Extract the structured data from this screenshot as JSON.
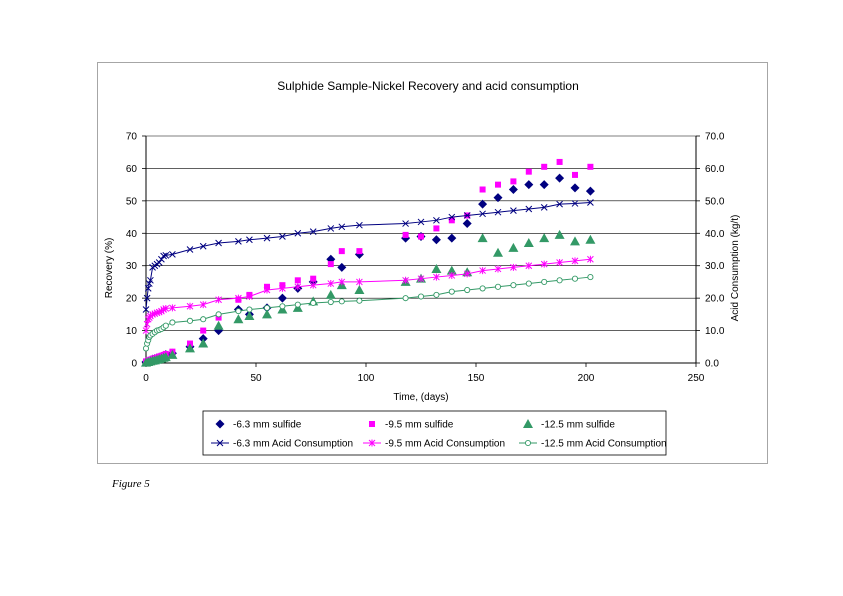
{
  "caption": "Figure 5",
  "chart_data": {
    "type": "scatter",
    "title": "Sulphide Sample-Nickel  Recovery and acid consumption",
    "xlabel": "Time, (days)",
    "ylabel": "Recovery (%)",
    "y2label": "Acid Consumption (kg/t)",
    "xlim": [
      0,
      250
    ],
    "ylim": [
      0,
      70
    ],
    "y2lim": [
      0,
      70
    ],
    "x_ticks": [
      "0",
      "50",
      "100",
      "150",
      "200",
      "250"
    ],
    "y_ticks": [
      "0",
      "10",
      "20",
      "30",
      "40",
      "50",
      "60",
      "70"
    ],
    "y2_ticks": [
      "0.0",
      "10.0",
      "20.0",
      "30.0",
      "40.0",
      "50.0",
      "60.0",
      "70.0"
    ],
    "grid": "horizontal",
    "legend_position": "bottom",
    "colors": {
      "navy": "#000080",
      "magenta": "#ff00ff",
      "green": "#339966",
      "grid": "#000000"
    },
    "series": [
      {
        "name": "-6.3 mm sulfide",
        "axis": "left",
        "marker": "diamond",
        "color": "#000080",
        "line": false,
        "x": [
          0,
          1,
          2,
          3,
          4,
          5,
          6,
          7,
          8,
          9,
          12,
          20,
          26,
          33,
          42,
          47,
          55,
          62,
          69,
          76,
          84,
          89,
          97,
          118,
          125,
          132,
          139,
          146,
          153,
          160,
          167,
          174,
          181,
          188,
          195,
          202
        ],
        "y": [
          0.3,
          0.6,
          0.9,
          1.2,
          1.4,
          1.6,
          1.8,
          2.0,
          2.3,
          2.6,
          3.0,
          5.0,
          7.5,
          10.0,
          16.5,
          15.0,
          17.0,
          20.0,
          23.0,
          25.0,
          32.0,
          29.5,
          33.5,
          38.5,
          39.0,
          38.0,
          38.5,
          43.0,
          49.0,
          51.0,
          53.5,
          55.0,
          55.0,
          57.0,
          54.0,
          53.0
        ]
      },
      {
        "name": "-9.5 mm sulfide",
        "axis": "left",
        "marker": "square",
        "color": "#ff00ff",
        "line": false,
        "x": [
          0,
          1,
          2,
          3,
          4,
          5,
          6,
          7,
          8,
          9,
          12,
          20,
          26,
          33,
          42,
          47,
          55,
          62,
          69,
          76,
          84,
          89,
          97,
          118,
          125,
          132,
          139,
          146,
          153,
          160,
          167,
          174,
          181,
          188,
          195,
          202
        ],
        "y": [
          0.5,
          0.8,
          1.0,
          1.3,
          1.5,
          1.7,
          2.0,
          2.2,
          2.5,
          2.8,
          3.5,
          6.0,
          10.0,
          14.0,
          19.5,
          21.0,
          23.5,
          24.0,
          25.5,
          26.0,
          30.5,
          34.5,
          34.5,
          39.5,
          39.0,
          41.5,
          44.0,
          45.5,
          53.5,
          55.0,
          56.0,
          59.0,
          60.5,
          62.0,
          58.0,
          60.5
        ]
      },
      {
        "name": "-12.5 mm sulfide",
        "axis": "left",
        "marker": "triangle",
        "color": "#339966",
        "line": false,
        "x": [
          0,
          1,
          2,
          3,
          4,
          5,
          6,
          7,
          8,
          9,
          12,
          20,
          26,
          33,
          42,
          47,
          55,
          62,
          69,
          76,
          84,
          89,
          97,
          118,
          125,
          132,
          139,
          146,
          153,
          160,
          167,
          174,
          181,
          188,
          195,
          202
        ],
        "y": [
          0.1,
          0.3,
          0.5,
          0.7,
          0.8,
          1.0,
          1.2,
          1.4,
          1.6,
          1.8,
          2.5,
          4.5,
          6.0,
          11.5,
          13.5,
          14.5,
          15.0,
          16.5,
          17.0,
          19.0,
          21.0,
          24.0,
          22.5,
          25.0,
          26.0,
          29.0,
          28.5,
          28.0,
          38.5,
          34.0,
          35.5,
          37.0,
          38.5,
          39.5,
          37.5,
          38.0
        ]
      },
      {
        "name": "-6.3 mm Acid Consumption",
        "axis": "right",
        "marker": "x",
        "color": "#000080",
        "line": true,
        "x": [
          0,
          0.5,
          1,
          1.5,
          2,
          3,
          4,
          5,
          6,
          7,
          8,
          9,
          12,
          20,
          26,
          33,
          42,
          47,
          55,
          62,
          69,
          76,
          84,
          89,
          97,
          118,
          125,
          132,
          139,
          146,
          153,
          160,
          167,
          174,
          181,
          188,
          195,
          202
        ],
        "y": [
          16.5,
          20.0,
          23.0,
          24.5,
          25.5,
          29.5,
          30.0,
          30.5,
          31.0,
          32.0,
          33.0,
          33.2,
          33.5,
          35.0,
          36.0,
          37.0,
          37.5,
          38.0,
          38.5,
          39.0,
          40.0,
          40.5,
          41.5,
          42.0,
          42.5,
          43.0,
          43.5,
          44.0,
          45.0,
          45.5,
          46.0,
          46.5,
          47.0,
          47.5,
          48.0,
          49.0,
          49.2,
          49.5
        ]
      },
      {
        "name": "-9.5 mm Acid Consumption",
        "axis": "right",
        "marker": "asterisk",
        "color": "#ff00ff",
        "line": true,
        "x": [
          0,
          0.5,
          1,
          1.5,
          2,
          3,
          4,
          5,
          6,
          7,
          8,
          9,
          12,
          20,
          26,
          33,
          42,
          47,
          55,
          62,
          69,
          76,
          84,
          89,
          97,
          118,
          125,
          132,
          139,
          146,
          153,
          160,
          167,
          174,
          181,
          188,
          195,
          202
        ],
        "y": [
          10.0,
          12.0,
          13.5,
          14.0,
          14.5,
          15.0,
          15.2,
          15.5,
          15.7,
          16.0,
          16.5,
          16.8,
          17.0,
          17.5,
          18.0,
          19.5,
          20.0,
          20.5,
          22.5,
          23.0,
          23.5,
          24.0,
          24.5,
          25.0,
          25.0,
          25.5,
          26.0,
          26.5,
          27.0,
          27.5,
          28.5,
          29.0,
          29.5,
          30.0,
          30.5,
          31.0,
          31.5,
          32.0
        ]
      },
      {
        "name": "-12.5 mm Acid Consumption",
        "axis": "right",
        "marker": "circle",
        "color": "#339966",
        "line": true,
        "x": [
          0,
          0.5,
          1,
          1.5,
          2,
          3,
          4,
          5,
          6,
          7,
          8,
          9,
          12,
          20,
          26,
          33,
          42,
          47,
          55,
          62,
          69,
          76,
          84,
          89,
          97,
          118,
          125,
          132,
          139,
          146,
          153,
          160,
          167,
          174,
          181,
          188,
          195,
          202
        ],
        "y": [
          4.5,
          6.0,
          7.0,
          8.0,
          8.5,
          9.0,
          9.5,
          10.0,
          10.2,
          10.5,
          11.0,
          11.5,
          12.5,
          13.0,
          13.5,
          15.0,
          16.0,
          16.5,
          17.0,
          17.5,
          18.0,
          18.5,
          18.8,
          19.0,
          19.2,
          20.0,
          20.5,
          21.0,
          22.0,
          22.5,
          23.0,
          23.5,
          24.0,
          24.5,
          25.0,
          25.5,
          26.0,
          26.5
        ]
      }
    ]
  }
}
